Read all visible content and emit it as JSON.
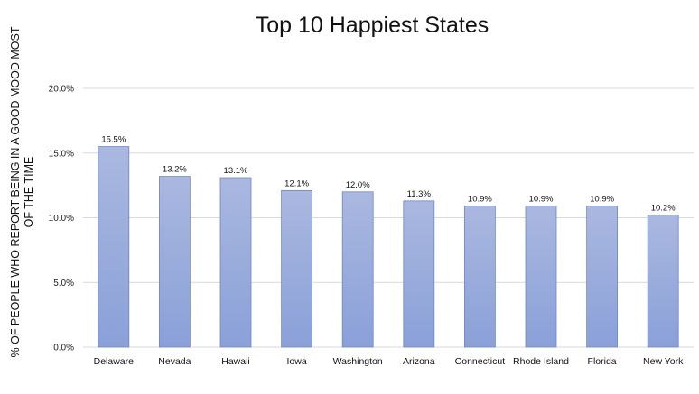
{
  "chart_data": {
    "type": "bar",
    "title": "Top 10 Happiest States",
    "ylabel": "%  OF PEOPLE WHO REPORT BEING IN A GOOD MOOD MOST OF THE TIME",
    "xlabel": "",
    "categories": [
      "Delaware",
      "Nevada",
      "Hawaii",
      "Iowa",
      "Washington",
      "Arizona",
      "Connecticut",
      "Rhode Island",
      "Florida",
      "New York"
    ],
    "values": [
      15.5,
      13.2,
      13.1,
      12.1,
      12.0,
      11.3,
      10.9,
      10.9,
      10.9,
      10.2
    ],
    "data_labels": [
      "15.5%",
      "13.2%",
      "13.1%",
      "12.1%",
      "12.0%",
      "11.3%",
      "10.9%",
      "10.9%",
      "10.9%",
      "10.2%"
    ],
    "ylim": [
      0,
      20
    ],
    "yticks": [
      0,
      5,
      10,
      15,
      20
    ],
    "ytick_labels": [
      "0.0%",
      "5.0%",
      "10.0%",
      "15.0%",
      "20.0%"
    ],
    "grid": true,
    "legend": "none",
    "colors": {
      "bar_top": "#aab8e0",
      "bar_bottom": "#8aa0d8",
      "bar_stroke": "#6f86c8",
      "grid": "#d9d9d9"
    }
  }
}
